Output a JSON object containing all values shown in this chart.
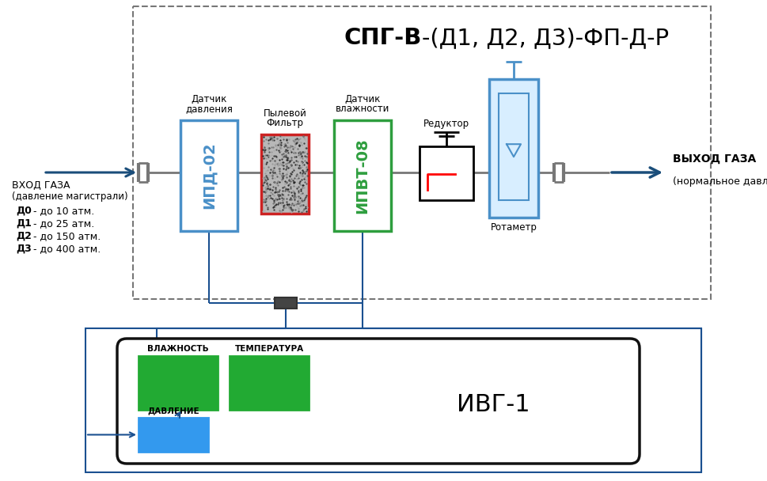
{
  "bg_color": "#ffffff",
  "title_bold": "СПГ-В",
  "title_normal": "-(Д1, Д2, Д3)-ФП-Д-Р",
  "ipd_label": "ИПД-02",
  "ipvt_label": "ИПВТ-08",
  "ivg_label": "ИВГ-1",
  "rotametr_label": "Ротаметр",
  "datchik_davleniya_1": "Датчик",
  "datchik_davleniya_2": "давления",
  "pylevoy_filtr_1": "Пылевой",
  "pylevoy_filtr_2": "Фильтр",
  "datchik_vlazhnosti_1": "Датчик",
  "datchik_vlazhnosti_2": "влажности",
  "reduktor_label": "Редуктор",
  "vhod_line1": "ВХОД ГАЗА",
  "vhod_line2": "(давление магистрали)",
  "vhod_items": [
    "Д0",
    "Д1",
    "Д2",
    "Д3"
  ],
  "vhod_vals": [
    " - до 10 атм.",
    " - до 25 атм.",
    " - до 150 атм.",
    " - до 400 атм."
  ],
  "vyhod_line1": "ВЫХОД ГАЗА",
  "vyhod_line2": "(нормальное давление )",
  "vlazhnost_label": "ВЛАЖНОСТЬ",
  "temperatura_label": "ТЕМПЕРАТУРА",
  "davlenie_label": "ДАВЛЕНИЕ",
  "ipd_color": "#4a90c8",
  "ipvt_color": "#2e9e3e",
  "filter_border": "#cc2222",
  "rotametr_color": "#4a90c8",
  "arrow_color": "#1a4d7a",
  "green_color": "#22aa33",
  "blue_color": "#3399ee",
  "wire_color": "#1a5090",
  "outer_dash_color": "#777777",
  "black": "#000000"
}
